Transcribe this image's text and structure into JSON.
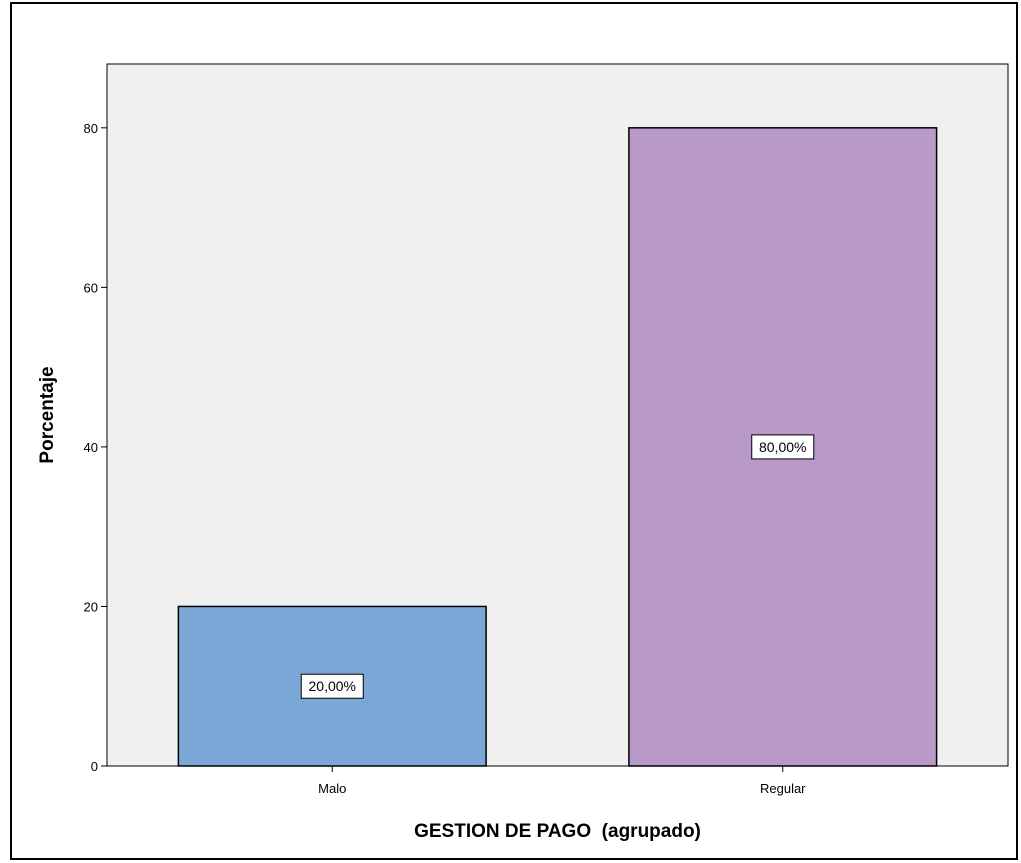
{
  "chart_data": {
    "type": "bar",
    "categories": [
      "Malo",
      "Regular"
    ],
    "values": [
      20,
      80
    ],
    "data_labels": [
      "20,00%",
      "80,00%"
    ],
    "title": "",
    "xlabel": "GESTION DE PAGO  (agrupado)",
    "ylabel": "Porcentaje",
    "ylim": [
      0,
      88
    ],
    "yticks": [
      0,
      20,
      40,
      60,
      80
    ],
    "ytick_labels": [
      "0",
      "20",
      "40",
      "60",
      "80"
    ],
    "grid": false,
    "colors": {
      "bars": [
        "#7ba7d6",
        "#b899c7"
      ],
      "plot_background": "#f0f0f0",
      "outline": "#000000"
    }
  }
}
